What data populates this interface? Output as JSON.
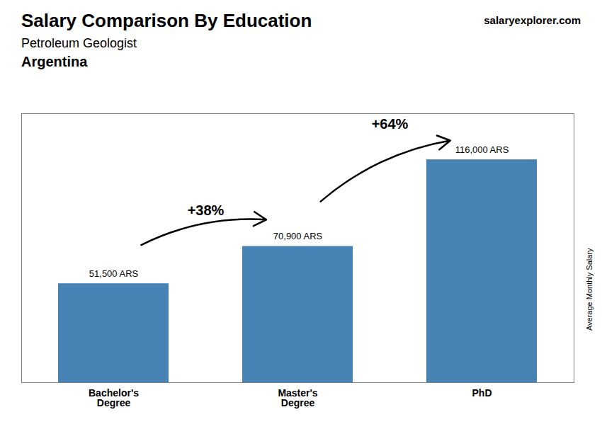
{
  "chart_data": {
    "type": "bar",
    "title": "Salary Comparison By Education",
    "subtitle": "Petroleum Geologist",
    "ylabel": "Average Monthly Salary",
    "categories": [
      "Bachelor's\nDegree",
      "Master's\nDegree",
      "PhD"
    ],
    "values": [
      51500,
      70900,
      116000
    ],
    "value_labels": [
      "51,500 ARS",
      "70,900 ARS",
      "116,000 ARS"
    ],
    "data_labels": true,
    "color": "#4682b4",
    "ylim": [
      0,
      140000
    ],
    "tick_labels": "x",
    "grid": false,
    "annotations": [
      {
        "text": "Argentina"
      },
      {
        "text": "salaryexplorer.com"
      },
      {
        "text": "+38%",
        "from": "Bachelor's\nDegree",
        "to": "Master's\nDegree"
      },
      {
        "text": "+64%",
        "from": "Master's\nDegree",
        "to": "PhD"
      }
    ]
  }
}
